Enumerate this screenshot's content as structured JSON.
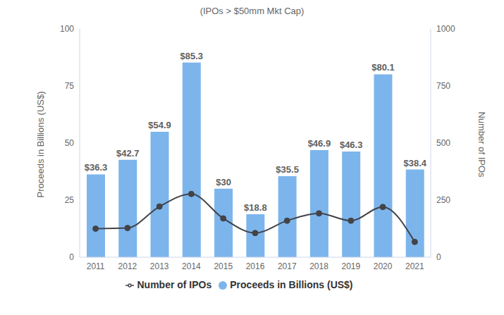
{
  "chart_data": {
    "type": "bar",
    "title": "(IPOs > $50mm Mkt Cap)",
    "categories": [
      "2011",
      "2012",
      "2013",
      "2014",
      "2015",
      "2016",
      "2017",
      "2018",
      "2019",
      "2020",
      "2021"
    ],
    "y_label": "Proceeds in Billions (US$)",
    "y2_label": "Number of IPOs",
    "ylim": [
      0,
      100
    ],
    "yticks": [
      0,
      25,
      50,
      75,
      100
    ],
    "y2lim": [
      0,
      1000
    ],
    "y2ticks": [
      0,
      250,
      500,
      750,
      1000
    ],
    "grid": false,
    "legend": "bottom",
    "data_labels": true,
    "series": [
      {
        "name": "Proceeds in Billions (US$)",
        "type": "bar",
        "color": "#7cb5ec",
        "values": [
          36.3,
          42.7,
          54.9,
          85.3,
          30,
          18.8,
          35.5,
          46.9,
          46.3,
          80.1,
          38.4
        ],
        "value_labels": [
          "$36.3",
          "$42.7",
          "$54.9",
          "$85.3",
          "$30",
          "$18.8",
          "$35.5",
          "$46.9",
          "$46.3",
          "$80.1",
          "$38.4"
        ]
      },
      {
        "name": "Number of IPOs",
        "type": "line",
        "axis": "y2",
        "color": "#434348",
        "marker": "circle",
        "line_style": "smooth",
        "values": [
          125,
          128,
          222,
          277,
          170,
          106,
          160,
          192,
          160,
          220,
          67
        ]
      }
    ]
  }
}
